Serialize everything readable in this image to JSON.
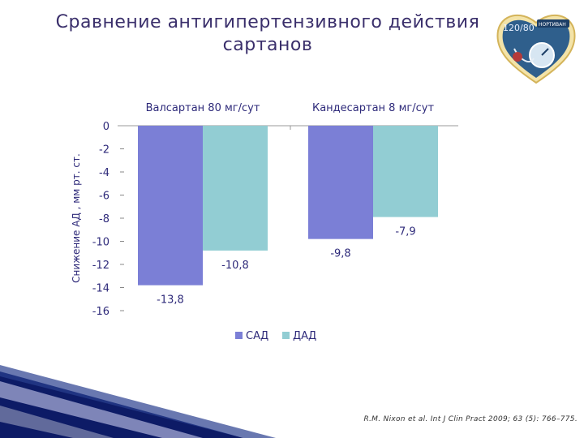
{
  "slide": {
    "title": "Сравнение антигипертензивного действия сартанов",
    "citation": "R.M. Nixon et al. Int J Clin Pract 2009; 63 (5): 766–775.",
    "logo_text": "НОРТИВАН",
    "logo_reading": "120/80"
  },
  "colors": {
    "sad": "#7b7fd6",
    "dad": "#92cdd3",
    "title": "#3a2f6b",
    "accent": "#2e2a7a"
  },
  "chart_data": {
    "type": "bar",
    "categories": [
      "Валсартан 80 мг/сут",
      "Кандесартан 8 мг/сут"
    ],
    "series": [
      {
        "name": "САД",
        "values": [
          -13.8,
          -9.8
        ],
        "labels": [
          "-13,8",
          "-9,8"
        ]
      },
      {
        "name": "ДАД",
        "values": [
          -10.8,
          -7.9
        ],
        "labels": [
          "-10,8",
          "-7,9"
        ]
      }
    ],
    "ylabel": "Снижение АД , мм рт. ст.",
    "ylim": [
      -16,
      0
    ],
    "yticks": [
      0,
      -2,
      -4,
      -6,
      -8,
      -10,
      -12,
      -14,
      -16
    ],
    "category_labels_position": "top",
    "legend": "bottom",
    "grid": false
  }
}
